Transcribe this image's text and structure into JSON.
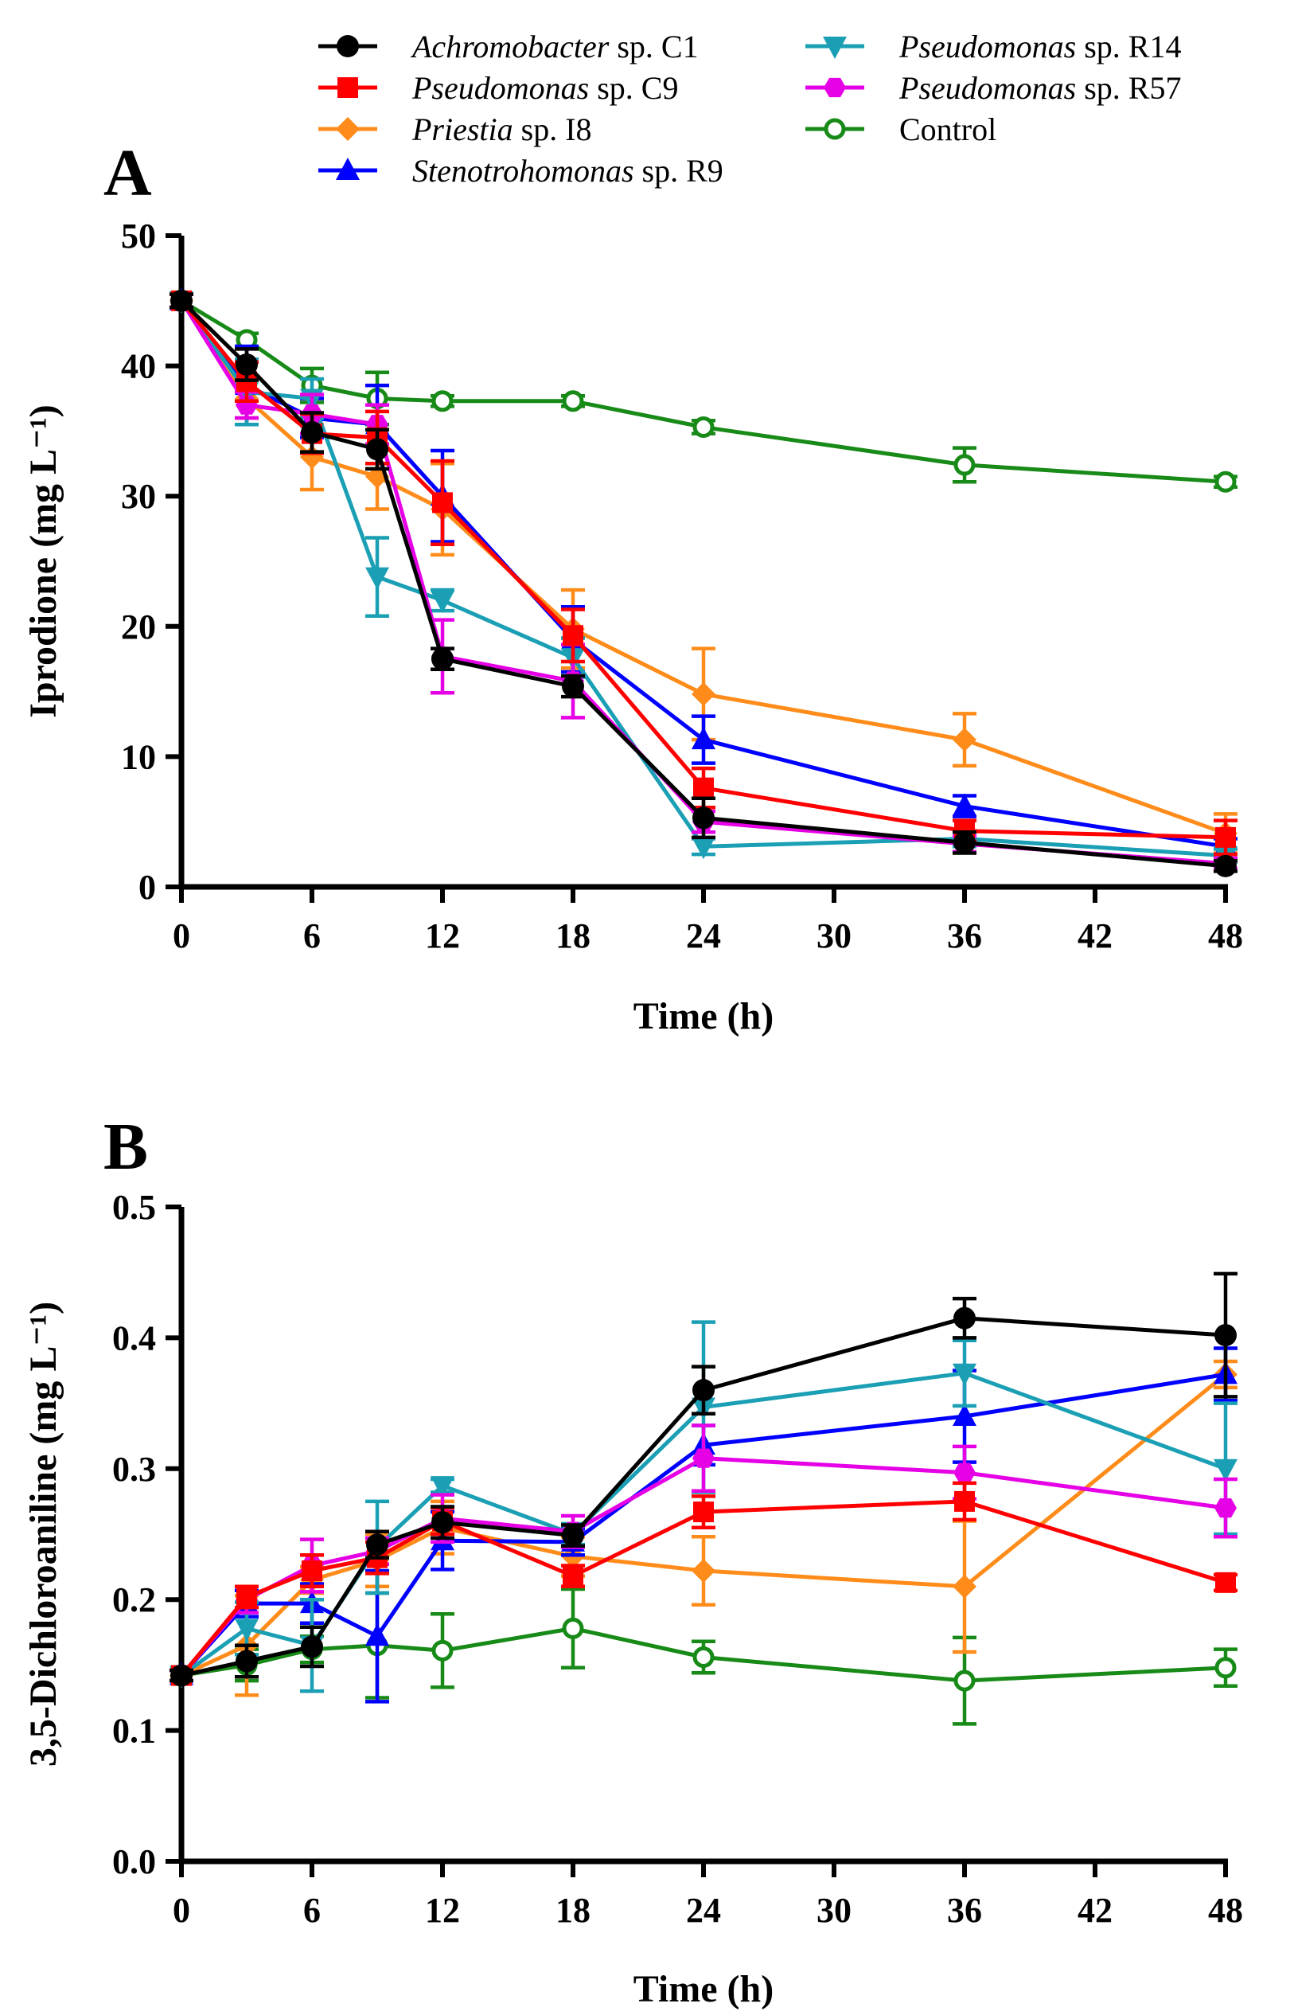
{
  "legend": [
    {
      "key": "c1",
      "genus": "Achromobacter",
      "rest": " sp. C1",
      "color": "#000000",
      "marker": "circle"
    },
    {
      "key": "c9",
      "genus": "Pseudomonas",
      "rest": " sp. C9",
      "color": "#ff0000",
      "marker": "square"
    },
    {
      "key": "i8",
      "genus": "Priestia",
      "rest": " sp. I8",
      "color": "#ff8c1a",
      "marker": "diamond"
    },
    {
      "key": "r9",
      "genus": "Stenotrohomonas",
      "rest": " sp. R9",
      "color": "#0000ff",
      "marker": "triangle-up"
    },
    {
      "key": "r14",
      "genus": "Pseudomonas",
      "rest": " sp. R14",
      "color": "#1a9fb4",
      "marker": "triangle-down"
    },
    {
      "key": "r57",
      "genus": "Pseudomonas",
      "rest": " sp. R57",
      "color": "#e600e6",
      "marker": "hexagon"
    },
    {
      "key": "ctrl",
      "genus": "",
      "rest": "Control",
      "color": "#178a17",
      "marker": "open-circle"
    }
  ],
  "chart_data": [
    {
      "panel": "A",
      "type": "line",
      "x": [
        0,
        3,
        6,
        9,
        12,
        18,
        24,
        36,
        48
      ],
      "xlabel": "Time (h)",
      "ylabel": "Iprodione (mg L⁻¹)",
      "xlim": [
        0,
        48
      ],
      "ylim": [
        0,
        50
      ],
      "xticks": [
        0,
        6,
        12,
        18,
        24,
        30,
        36,
        42,
        48
      ],
      "yticks": [
        0,
        10,
        20,
        30,
        40,
        50
      ],
      "ytick_labels": [
        "0",
        "10",
        "20",
        "30",
        "40",
        "50"
      ],
      "series": [
        {
          "key": "ctrl",
          "name": "Control",
          "values": [
            45,
            42,
            38.5,
            37.5,
            37.3,
            37.3,
            35.3,
            32.4,
            31.1
          ],
          "err": [
            0.5,
            0.5,
            1.3,
            2,
            0.4,
            0.4,
            0.5,
            1.3,
            0.4
          ]
        },
        {
          "key": "i8",
          "name": "Priestia sp. I8",
          "values": [
            45,
            37.5,
            33,
            31.5,
            29,
            19.8,
            14.8,
            11.3,
            4.1
          ],
          "err": [
            0.5,
            1.5,
            2.5,
            2.5,
            3.5,
            3,
            3.5,
            2,
            1.5
          ]
        },
        {
          "key": "r9",
          "name": "Stenotrohomonas sp. R9",
          "values": [
            45,
            38.5,
            36,
            35.5,
            30,
            19,
            11.3,
            6.2,
            3.1
          ],
          "err": [
            0.5,
            3,
            1.5,
            3,
            3.5,
            2.5,
            1.8,
            0.8,
            0.6
          ]
        },
        {
          "key": "r14",
          "name": "Pseudomonas sp. R14",
          "values": [
            45,
            38,
            37.5,
            23.8,
            22,
            17.6,
            3.1,
            3.7,
            2.4
          ],
          "err": [
            0.5,
            2.5,
            1.5,
            3,
            0.8,
            1.5,
            0.6,
            0.6,
            0.5
          ]
        },
        {
          "key": "r57",
          "name": "Pseudomonas sp. R57",
          "values": [
            45,
            37,
            36.3,
            35.5,
            17.7,
            15.8,
            5,
            3.3,
            1.8
          ],
          "err": [
            0.5,
            1,
            1.5,
            1.5,
            2.8,
            2.8,
            0.8,
            0.6,
            0.4
          ]
        },
        {
          "key": "c9",
          "name": "Pseudomonas sp. C9",
          "values": [
            45,
            38.8,
            34.8,
            34.5,
            29.5,
            19.3,
            7.6,
            4.3,
            3.8
          ],
          "err": [
            0.5,
            1.5,
            1.5,
            2,
            3.2,
            2,
            1.5,
            0.8,
            1.3
          ]
        },
        {
          "key": "c1",
          "name": "Achromobacter sp. C1",
          "values": [
            45,
            40.1,
            34.9,
            33.6,
            17.5,
            15.4,
            5.3,
            3.4,
            1.6
          ],
          "err": [
            0.5,
            1.2,
            1.5,
            1.5,
            0.8,
            0.8,
            1.5,
            0.8,
            0.4
          ]
        }
      ]
    },
    {
      "panel": "B",
      "type": "line",
      "x": [
        0,
        3,
        6,
        9,
        12,
        18,
        24,
        36,
        48
      ],
      "xlabel": "Time (h)",
      "ylabel": "3,5-Dichloroaniline (mg L⁻¹)",
      "xlim": [
        0,
        48
      ],
      "ylim": [
        0,
        0.5
      ],
      "xticks": [
        0,
        6,
        12,
        18,
        24,
        30,
        36,
        42,
        48
      ],
      "yticks": [
        0,
        0.1,
        0.2,
        0.3,
        0.4,
        0.5
      ],
      "ytick_labels": [
        "0.0",
        "0.1",
        "0.2",
        "0.3",
        "0.4",
        "0.5"
      ],
      "series": [
        {
          "key": "ctrl",
          "name": "Control",
          "values": [
            0.142,
            0.15,
            0.162,
            0.165,
            0.161,
            0.178,
            0.156,
            0.138,
            0.148
          ],
          "err": [
            0.004,
            0.012,
            0.01,
            0.04,
            0.028,
            0.03,
            0.012,
            0.033,
            0.014
          ]
        },
        {
          "key": "i8",
          "name": "Priestia sp. I8",
          "values": [
            0.142,
            0.165,
            0.215,
            0.23,
            0.255,
            0.233,
            0.222,
            0.21,
            0.372
          ],
          "err": [
            0.004,
            0.038,
            0.01,
            0.02,
            0.02,
            0.015,
            0.026,
            0.05,
            0.01
          ]
        },
        {
          "key": "r9",
          "name": "Stenotrohomonas sp. R9",
          "values": [
            0.142,
            0.197,
            0.197,
            0.172,
            0.245,
            0.244,
            0.318,
            0.34,
            0.372
          ],
          "err": [
            0.004,
            0.01,
            0.015,
            0.05,
            0.022,
            0.01,
            0.015,
            0.035,
            0.02
          ]
        },
        {
          "key": "r14",
          "name": "Pseudomonas sp. R14",
          "values": [
            0.142,
            0.178,
            0.165,
            0.24,
            0.287,
            0.25,
            0.347,
            0.373,
            0.3
          ],
          "err": [
            0.004,
            0.02,
            0.035,
            0.035,
            0.005,
            0.008,
            0.065,
            0.025,
            0.05
          ]
        },
        {
          "key": "r57",
          "name": "Pseudomonas sp. R57",
          "values": [
            0.142,
            0.2,
            0.226,
            0.237,
            0.262,
            0.252,
            0.308,
            0.297,
            0.27
          ],
          "err": [
            0.004,
            0.01,
            0.02,
            0.01,
            0.018,
            0.012,
            0.025,
            0.02,
            0.022
          ]
        },
        {
          "key": "c9",
          "name": "Pseudomonas sp. C9",
          "values": [
            0.142,
            0.202,
            0.222,
            0.232,
            0.26,
            0.218,
            0.267,
            0.275,
            0.213
          ],
          "err": [
            0.004,
            0.008,
            0.012,
            0.012,
            0.01,
            0.008,
            0.012,
            0.014,
            0.006
          ]
        },
        {
          "key": "c1",
          "name": "Achromobacter sp. C1",
          "values": [
            0.142,
            0.153,
            0.164,
            0.242,
            0.259,
            0.249,
            0.36,
            0.415,
            0.402
          ],
          "err": [
            0.004,
            0.012,
            0.015,
            0.01,
            0.012,
            0.008,
            0.018,
            0.015,
            0.047
          ]
        }
      ]
    }
  ]
}
